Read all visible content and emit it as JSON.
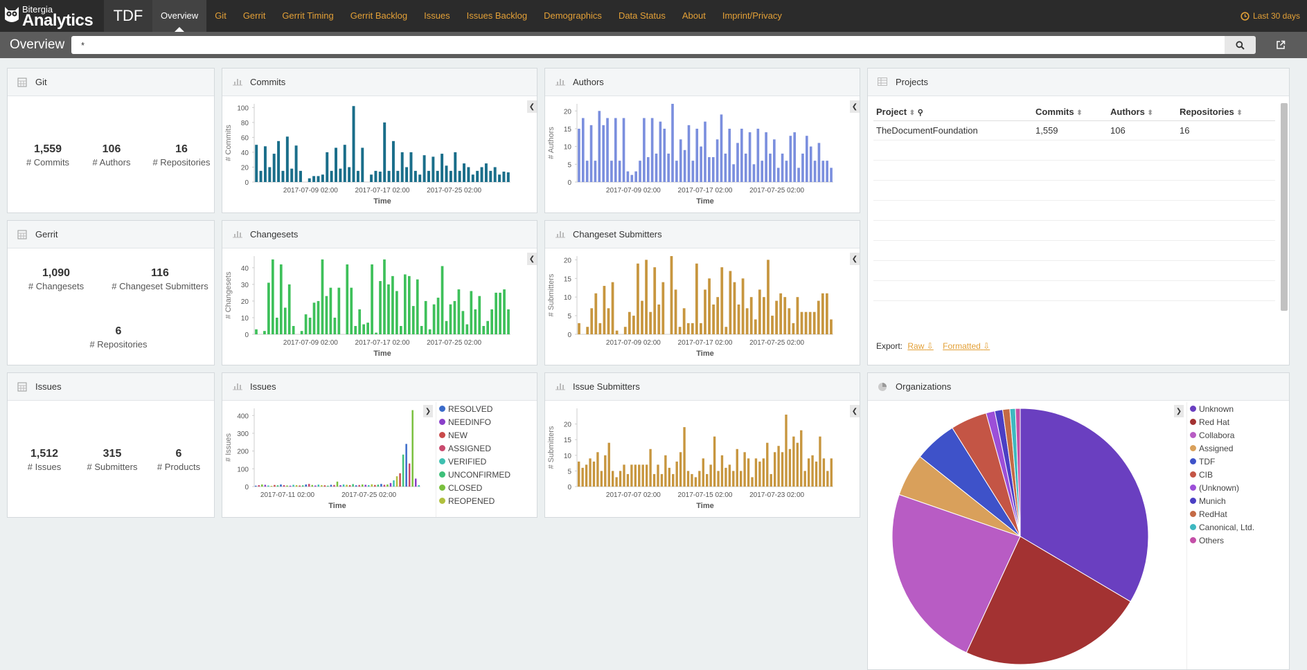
{
  "header": {
    "logo_small": "Bitergia",
    "logo_big": "Analytics",
    "brand": "TDF",
    "nav": [
      "Overview",
      "Git",
      "Gerrit",
      "Gerrit Timing",
      "Gerrit Backlog",
      "Issues",
      "Issues Backlog",
      "Demographics",
      "Data Status",
      "About",
      "Imprint/Privacy"
    ],
    "time_range": "Last 30 days"
  },
  "search": {
    "page_title": "Overview",
    "query": "*"
  },
  "colors": {
    "accent": "#e3a037",
    "commits": "#1a6e8a",
    "authors": "#7b8fde",
    "changesets": "#3ec05a",
    "submitters": "#c7963f"
  },
  "git": {
    "title": "Git",
    "commits_value": "1,559",
    "commits_label": "# Commits",
    "authors_value": "106",
    "authors_label": "# Authors",
    "repos_value": "16",
    "repos_label": "# Repositories"
  },
  "gerrit": {
    "title": "Gerrit",
    "changesets_value": "1,090",
    "changesets_label": "# Changesets",
    "submitters_value": "116",
    "submitters_label": "# Changeset Submitters",
    "repos_value": "6",
    "repos_label": "# Repositories"
  },
  "issues": {
    "title": "Issues",
    "issues_value": "1,512",
    "issues_label": "# Issues",
    "submitters_value": "315",
    "submitters_label": "# Submitters",
    "products_value": "6",
    "products_label": "# Products"
  },
  "panels": {
    "commits": "Commits",
    "authors": "Authors",
    "projects": "Projects",
    "changesets": "Changesets",
    "changeset_submitters": "Changeset Submitters",
    "issues_chart": "Issues",
    "issue_submitters": "Issue Submitters",
    "organizations": "Organizations"
  },
  "projects": {
    "columns": [
      "Project",
      "Commits",
      "Authors",
      "Repositories"
    ],
    "rows": [
      [
        "TheDocumentFoundation",
        "1,559",
        "106",
        "16"
      ]
    ],
    "export_label": "Export:",
    "raw": "Raw",
    "formatted": "Formatted"
  },
  "chart_data": [
    {
      "id": "commits",
      "type": "bar",
      "xlabel": "Time",
      "ylabel": "# Commits",
      "yticks": [
        0,
        20,
        40,
        60,
        80,
        100
      ],
      "ylim": [
        0,
        105
      ],
      "xticks": [
        "2017-07-09 02:00",
        "2017-07-17 02:00",
        "2017-07-25 02:00"
      ],
      "values": [
        50,
        15,
        48,
        20,
        38,
        55,
        15,
        61,
        18,
        49,
        15,
        0,
        5,
        8,
        8,
        10,
        40,
        15,
        46,
        18,
        50,
        20,
        102,
        15,
        46,
        0,
        10,
        15,
        14,
        80,
        15,
        55,
        15,
        40,
        20,
        40,
        15,
        10,
        36,
        15,
        34,
        15,
        38,
        22,
        15,
        40,
        15,
        25,
        20,
        10,
        15,
        20,
        25,
        15,
        20,
        10,
        14,
        13
      ]
    },
    {
      "id": "authors",
      "type": "bar",
      "xlabel": "Time",
      "ylabel": "# Authors",
      "yticks": [
        0,
        5,
        10,
        15,
        20
      ],
      "ylim": [
        0,
        22
      ],
      "xticks": [
        "2017-07-09 02:00",
        "2017-07-17 02:00",
        "2017-07-25 02:00"
      ],
      "values": [
        15,
        18,
        6,
        16,
        6,
        20,
        16,
        18,
        6,
        18,
        6,
        18,
        3,
        2,
        3,
        6,
        18,
        7,
        18,
        8,
        17,
        15,
        8,
        22,
        6,
        12,
        9,
        16,
        6,
        15,
        10,
        17,
        7,
        7,
        12,
        19,
        8,
        15,
        5,
        11,
        15,
        8,
        14,
        5,
        15,
        6,
        14,
        8,
        12,
        4,
        8,
        6,
        13,
        14,
        4,
        8,
        13,
        10,
        6,
        11,
        6,
        6,
        4
      ]
    },
    {
      "id": "changesets",
      "type": "bar",
      "xlabel": "Time",
      "ylabel": "# Changesets",
      "yticks": [
        0,
        10,
        20,
        30,
        40
      ],
      "ylim": [
        0,
        47
      ],
      "xticks": [
        "2017-07-09 02:00",
        "2017-07-17 02:00",
        "2017-07-25 02:00"
      ],
      "values": [
        3,
        0,
        2,
        31,
        45,
        10,
        42,
        16,
        30,
        5,
        0,
        2,
        12,
        10,
        19,
        20,
        45,
        23,
        28,
        10,
        28,
        0,
        42,
        28,
        5,
        15,
        6,
        7,
        42,
        1,
        32,
        45,
        30,
        35,
        26,
        5,
        36,
        35,
        17,
        33,
        5,
        20,
        3,
        18,
        22,
        41,
        8,
        18,
        20,
        27,
        14,
        6,
        26,
        15,
        23,
        5,
        8,
        15,
        25,
        25,
        27,
        15
      ]
    },
    {
      "id": "changeset_submitters",
      "type": "bar",
      "xlabel": "Time",
      "ylabel": "# Submitters",
      "yticks": [
        0,
        5,
        10,
        15,
        20
      ],
      "ylim": [
        0,
        21
      ],
      "xticks": [
        "2017-07-09 02:00",
        "2017-07-17 02:00",
        "2017-07-25 02:00"
      ],
      "values": [
        3,
        0,
        2,
        7,
        11,
        3,
        13,
        7,
        14,
        1,
        0,
        2,
        6,
        5,
        19,
        9,
        20,
        6,
        18,
        8,
        14,
        0,
        21,
        12,
        2,
        7,
        3,
        3,
        19,
        3,
        12,
        15,
        8,
        10,
        18,
        2,
        17,
        14,
        8,
        15,
        7,
        10,
        4,
        12,
        10,
        20,
        5,
        9,
        11,
        10,
        7,
        3,
        10,
        6,
        6,
        6,
        6,
        9,
        11,
        11,
        4
      ]
    },
    {
      "id": "issues",
      "type": "bar",
      "xlabel": "Time",
      "ylabel": "# Issues",
      "yticks": [
        0,
        100,
        200,
        300,
        400
      ],
      "ylim": [
        0,
        440
      ],
      "xticks": [
        "2017-07-11 02:00",
        "2017-07-25 02:00"
      ],
      "series": [
        {
          "name": "RESOLVED",
          "color": "#3a6bc9"
        },
        {
          "name": "NEEDINFO",
          "color": "#8a3fc9"
        },
        {
          "name": "NEW",
          "color": "#c94a4a"
        },
        {
          "name": "ASSIGNED",
          "color": "#c94a6e"
        },
        {
          "name": "VERIFIED",
          "color": "#3ec0b0"
        },
        {
          "name": "UNCONFIRMED",
          "color": "#3ec07a"
        },
        {
          "name": "CLOSED",
          "color": "#7ac03e"
        },
        {
          "name": "REOPENED",
          "color": "#b0c03e"
        }
      ],
      "values": [
        5,
        8,
        12,
        10,
        6,
        4,
        9,
        7,
        12,
        8,
        6,
        5,
        10,
        8,
        6,
        7,
        12,
        15,
        9,
        6,
        11,
        8,
        7,
        5,
        10,
        9,
        28,
        8,
        12,
        10,
        8,
        14,
        7,
        9,
        12,
        10,
        8,
        13,
        9,
        11,
        15,
        10,
        12,
        20,
        35,
        58,
        75,
        180,
        240,
        130,
        430,
        45,
        8
      ]
    },
    {
      "id": "issue_submitters",
      "type": "bar",
      "xlabel": "Time",
      "ylabel": "# Submitters",
      "yticks": [
        0,
        5,
        10,
        15,
        20
      ],
      "ylim": [
        0,
        25
      ],
      "xticks": [
        "2017-07-07 02:00",
        "2017-07-15 02:00",
        "2017-07-23 02:00"
      ],
      "values": [
        8,
        6,
        7,
        9,
        8,
        11,
        5,
        10,
        14,
        5,
        3,
        5,
        7,
        4,
        7,
        7,
        7,
        7,
        7,
        12,
        4,
        7,
        4,
        10,
        6,
        4,
        8,
        11,
        19,
        5,
        4,
        3,
        5,
        9,
        4,
        7,
        16,
        5,
        10,
        6,
        7,
        5,
        12,
        5,
        11,
        9,
        3,
        9,
        8,
        9,
        14,
        4,
        11,
        13,
        11,
        23,
        12,
        16,
        14,
        18,
        5,
        9,
        10,
        8,
        16,
        9,
        5,
        9
      ]
    },
    {
      "id": "organizations",
      "type": "pie",
      "labels": [
        "Unknown",
        "Red Hat",
        "Collabora",
        "Assigned",
        "TDF",
        "CIB",
        "(Unknown)",
        "Munich",
        "RedHat",
        "Canonical, Ltd.",
        "Others"
      ],
      "colors": [
        "#6a3fc0",
        "#a33232",
        "#b85cc4",
        "#d9a05b",
        "#3e52c9",
        "#c45545",
        "#9c4fd8",
        "#4b3fc4",
        "#c46a45",
        "#3eb8c0",
        "#c44fa8"
      ],
      "values": [
        33.5,
        23.4,
        23.4,
        5.4,
        5.4,
        4.6,
        1.1,
        1.0,
        0.9,
        0.7,
        0.6
      ]
    }
  ]
}
